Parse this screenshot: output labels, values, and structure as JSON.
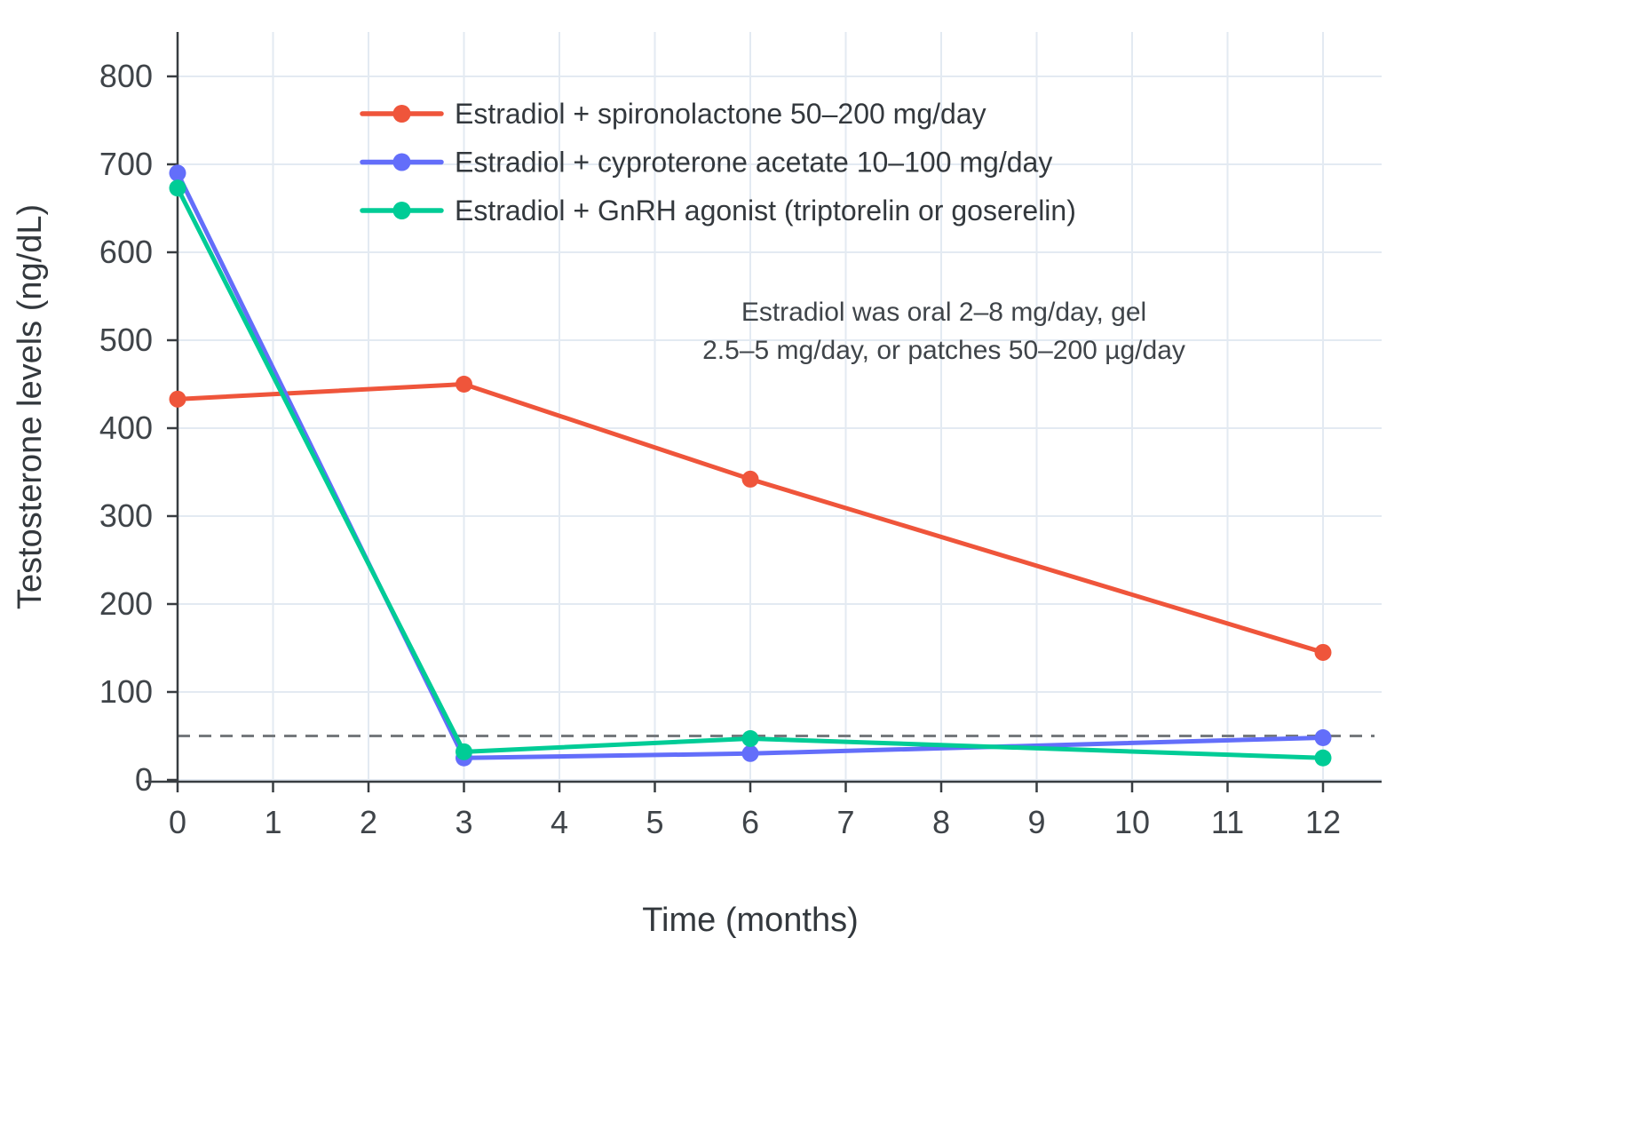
{
  "figure": {
    "background": "#ffffff"
  },
  "chart_data": {
    "type": "line",
    "title": "",
    "xlabel": "Time (months)",
    "ylabel": "Testosterone levels (ng/dL)",
    "x": [
      0,
      3,
      6,
      12
    ],
    "x_ticks": [
      0,
      1,
      2,
      3,
      4,
      5,
      6,
      7,
      8,
      9,
      10,
      11,
      12
    ],
    "y_ticks": [
      0,
      100,
      200,
      300,
      400,
      500,
      600,
      700,
      800
    ],
    "xlim": [
      0,
      12
    ],
    "ylim": [
      0,
      800
    ],
    "grid": true,
    "grid_color": "#e3eaf2",
    "axis_color": "#383d41",
    "legend_position": "top-left-inside",
    "series": [
      {
        "name": "Estradiol + spironolactone 50–200 mg/day",
        "color": "#EF553B",
        "values": [
          433,
          450,
          342,
          145
        ]
      },
      {
        "name": "Estradiol + cyproterone acetate 10–100 mg/day",
        "color": "#636EFA",
        "values": [
          690,
          25,
          30,
          48
        ]
      },
      {
        "name": "Estradiol + GnRH agonist (triptorelin or goserelin)",
        "color": "#00CC96",
        "values": [
          673,
          32,
          47,
          25
        ]
      }
    ],
    "reference_line": {
      "y": 50,
      "style": "dashed",
      "color": "#75797d"
    },
    "annotation": {
      "lines": [
        "Estradiol was oral 2–8 mg/day, gel",
        "2.5–5 mg/day, or patches 50–200 µg/day"
      ]
    }
  }
}
